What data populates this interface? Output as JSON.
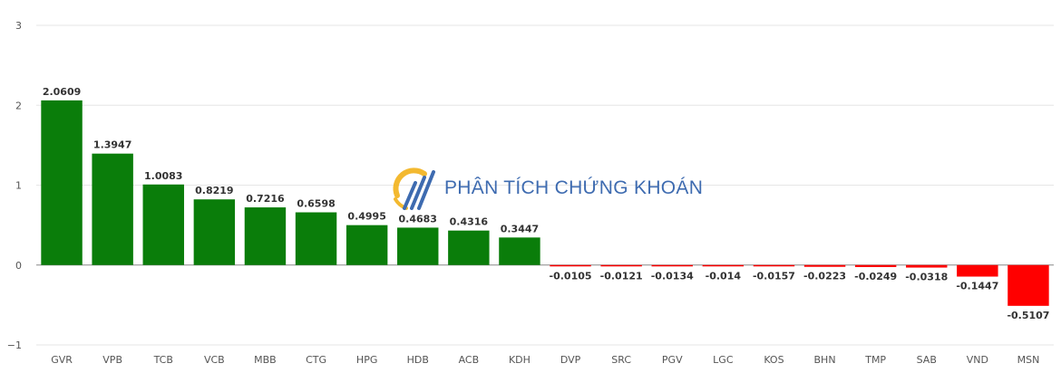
{
  "chart_data": {
    "type": "bar",
    "categories": [
      "GVR",
      "VPB",
      "TCB",
      "VCB",
      "MBB",
      "CTG",
      "HPG",
      "HDB",
      "ACB",
      "KDH",
      "DVP",
      "SRC",
      "PGV",
      "LGC",
      "KOS",
      "BHN",
      "TMP",
      "SAB",
      "VND",
      "MSN"
    ],
    "values": [
      2.0609,
      1.3947,
      1.0083,
      0.8219,
      0.7216,
      0.6598,
      0.4995,
      0.4683,
      0.4316,
      0.3447,
      -0.0105,
      -0.0121,
      -0.0134,
      -0.014,
      -0.0157,
      -0.0223,
      -0.0249,
      -0.0318,
      -0.1447,
      -0.5107
    ],
    "value_labels": [
      "2.0609",
      "1.3947",
      "1.0083",
      "0.8219",
      "0.7216",
      "0.6598",
      "0.4995",
      "0.4683",
      "0.4316",
      "0.3447",
      "-0.0105",
      "-0.0121",
      "-0.0134",
      "-0.014",
      "-0.0157",
      "-0.0223",
      "-0.0249",
      "-0.0318",
      "-0.1447",
      "-0.5107"
    ],
    "ylim": [
      -1,
      3
    ],
    "yticks": [
      3,
      2,
      1,
      0,
      -1
    ],
    "ytick_labels": [
      "3",
      "2",
      "1",
      "0",
      "−1"
    ],
    "grid": true,
    "colors": {
      "positive": "#0a7d0a",
      "negative": "#ff0000",
      "grid": "#e6e6e6",
      "zero_line": "#888888"
    }
  },
  "watermark": {
    "text": "PHÂN TÍCH CHỨNG KHOÁN",
    "icon": "chart-logo-icon"
  }
}
